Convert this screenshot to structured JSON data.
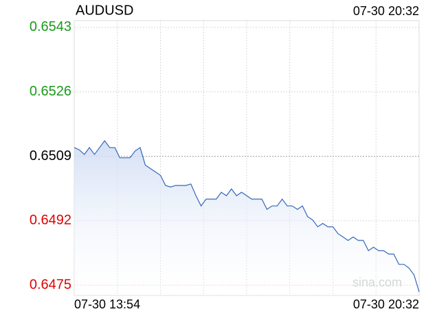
{
  "chart_data": {
    "type": "line",
    "title": "AUDUSD",
    "timestamp": "07-30 20:32",
    "watermark": "sina.com",
    "categories": [
      "07-30 13:54",
      null,
      null,
      null,
      null,
      null,
      null,
      null,
      null,
      null,
      null,
      null,
      null,
      null,
      null,
      null,
      null,
      null,
      null,
      null,
      null,
      null,
      null,
      null,
      null,
      null,
      null,
      null,
      null,
      null,
      null,
      null,
      null,
      null,
      null,
      null,
      null,
      null,
      null,
      null,
      null,
      null,
      null,
      null,
      null,
      null,
      null,
      null,
      null,
      null,
      null,
      null,
      null,
      null,
      null,
      null,
      null,
      null,
      null,
      null,
      null,
      null,
      null,
      null,
      null,
      null,
      null,
      null,
      "07-30 20:32"
    ],
    "series": [
      {
        "name": "AUDUSD",
        "color": "#3366bb",
        "values": [
          0.65113,
          0.65107,
          0.65095,
          0.65113,
          0.65095,
          0.65113,
          0.65131,
          0.65113,
          0.65113,
          0.65086,
          0.65086,
          0.65086,
          0.65104,
          0.65113,
          0.65067,
          0.65058,
          0.65049,
          0.6504,
          0.65013,
          0.65009,
          0.65013,
          0.65013,
          0.65013,
          0.65017,
          0.64986,
          0.64959,
          0.64977,
          0.64977,
          0.64977,
          0.64995,
          0.64986,
          0.65004,
          0.64986,
          0.64995,
          0.64986,
          0.64977,
          0.64977,
          0.64977,
          0.6495,
          0.64959,
          0.64959,
          0.64977,
          0.64959,
          0.64959,
          0.6495,
          0.64959,
          0.64931,
          0.64922,
          0.64904,
          0.64913,
          0.64904,
          0.64904,
          0.64886,
          0.64877,
          0.64868,
          0.64877,
          0.64868,
          0.64868,
          0.64841,
          0.6485,
          0.64841,
          0.64841,
          0.64832,
          0.64832,
          0.64805,
          0.64805,
          0.64795,
          0.64777,
          0.64732
        ]
      }
    ],
    "ylim": [
      0.64723,
      0.65448
    ],
    "yticks": [
      0.6543,
      0.6526,
      0.6509,
      0.6492,
      0.6475
    ],
    "ytick_colors": [
      "#1a9a1a",
      "#1a9a1a",
      "#000000",
      "#e00000",
      "#e00000"
    ],
    "grid": true
  }
}
